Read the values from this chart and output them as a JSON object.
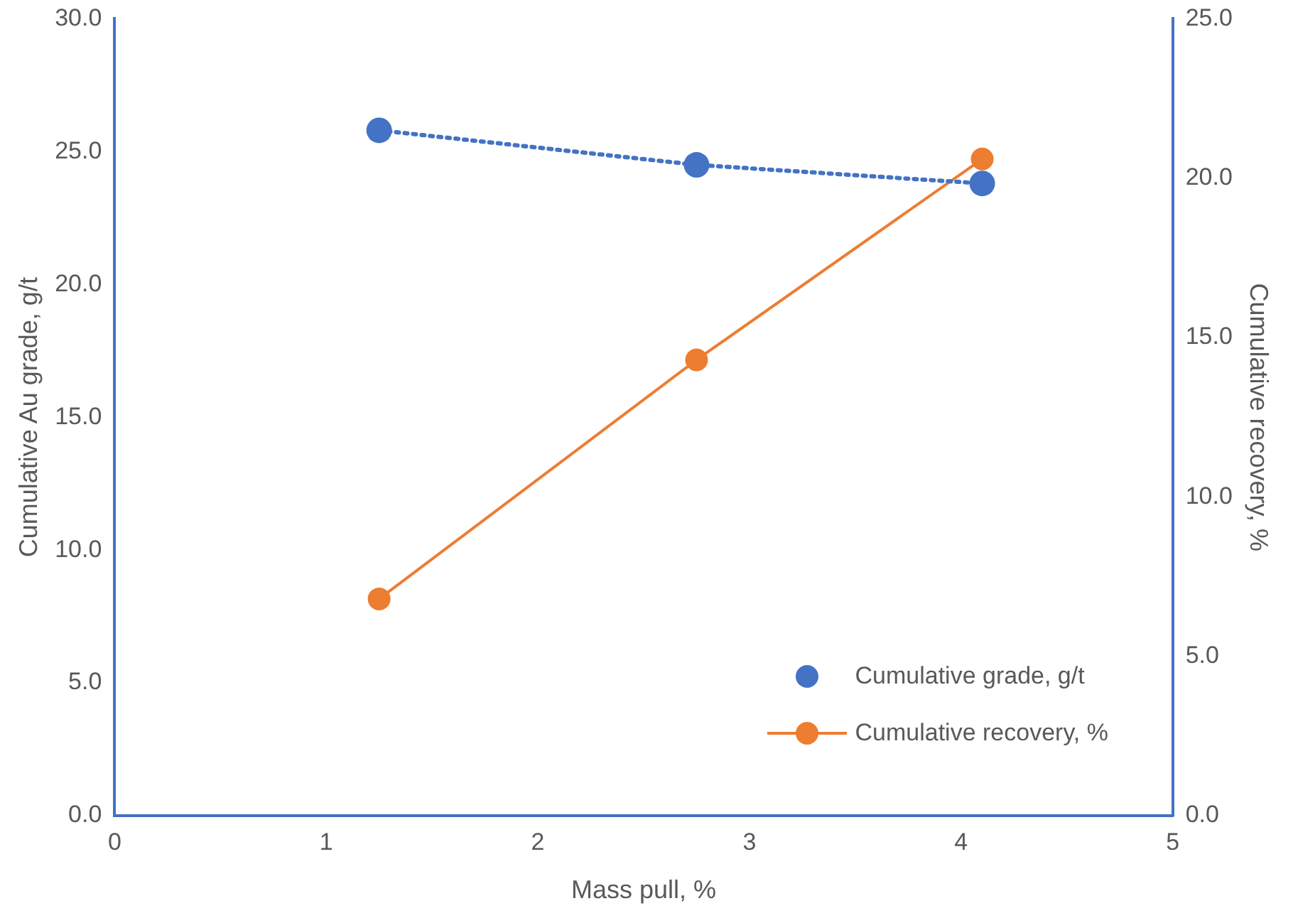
{
  "chart_data": {
    "type": "line",
    "xlabel": "Mass pull, %",
    "ylabel": "Cumulative Au grade, g/t",
    "y2label": "Cumulative recovery, %",
    "x": [
      1.25,
      2.75,
      4.1
    ],
    "xlim": [
      0,
      5
    ],
    "xticks": [
      0,
      1,
      2,
      3,
      4,
      5
    ],
    "ylim": [
      0,
      30
    ],
    "yticks": [
      {
        "value": 0,
        "label": "0.0"
      },
      {
        "value": 5,
        "label": "5.0"
      },
      {
        "value": 10,
        "label": "10.0"
      },
      {
        "value": 15,
        "label": "15.0"
      },
      {
        "value": 20,
        "label": "20.0"
      },
      {
        "value": 25,
        "label": "25.0"
      },
      {
        "value": 30,
        "label": "30.0"
      }
    ],
    "y2lim": [
      0,
      25
    ],
    "y2ticks": [
      {
        "value": 0,
        "label": "0.0"
      },
      {
        "value": 5,
        "label": "5.0"
      },
      {
        "value": 10,
        "label": "10.0"
      },
      {
        "value": 15,
        "label": "15.0"
      },
      {
        "value": 20,
        "label": "20.0"
      },
      {
        "value": 25,
        "label": "25.0"
      }
    ],
    "series": [
      {
        "name": "Cumulative grade, g/t",
        "color": "#4472c4",
        "values": [
          25.8,
          24.5,
          23.8
        ],
        "line_style": "dotted",
        "marker": "circle"
      },
      {
        "name": "Cumulative recovery, %",
        "color": "#ed7d31",
        "values": [
          6.8,
          14.3,
          20.6
        ],
        "axis": "y2",
        "line_style": "solid",
        "marker": "circle"
      }
    ],
    "grid": false,
    "legend": "bottom right"
  }
}
